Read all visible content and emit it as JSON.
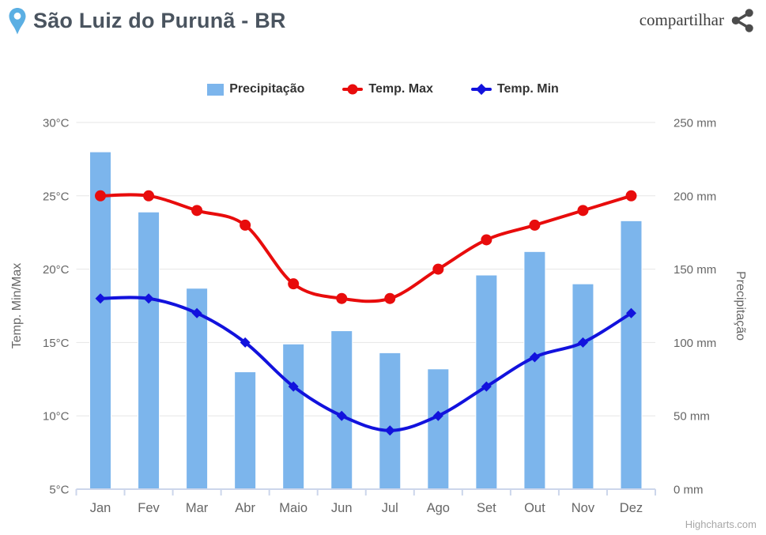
{
  "header": {
    "title": "São Luiz do Purunã - BR",
    "share_label": "compartilhar",
    "title_color": "#4a545f",
    "pin_color": "#5bafe3"
  },
  "legend": {
    "items": [
      {
        "label": "Precipitação",
        "type": "bar-swatch",
        "color": "#7cb5ec"
      },
      {
        "label": "Temp. Max",
        "type": "line-circle",
        "color": "#e80c0c"
      },
      {
        "label": "Temp. Min",
        "type": "line-diamond",
        "color": "#1212dd"
      }
    ]
  },
  "chart_data": {
    "type": "mixed",
    "title": "",
    "categories": [
      "Jan",
      "Fev",
      "Mar",
      "Abr",
      "Maio",
      "Jun",
      "Jul",
      "Ago",
      "Set",
      "Out",
      "Nov",
      "Dez"
    ],
    "series": [
      {
        "name": "Precipitação",
        "type": "bar",
        "axis": "right",
        "unit": "mm",
        "color": "#7cb5ec",
        "values": [
          230,
          189,
          137,
          80,
          99,
          108,
          93,
          82,
          146,
          162,
          140,
          183
        ]
      },
      {
        "name": "Temp. Max",
        "type": "spline",
        "axis": "left",
        "unit": "°C",
        "color": "#e80c0c",
        "marker": "circle",
        "values": [
          25,
          25,
          24,
          23,
          19,
          18,
          18,
          20,
          22,
          23,
          24,
          25
        ]
      },
      {
        "name": "Temp. Min",
        "type": "spline",
        "axis": "left",
        "unit": "°C",
        "color": "#1212dd",
        "marker": "diamond",
        "values": [
          18,
          18,
          17,
          15,
          12,
          10,
          9,
          10,
          12,
          14,
          15,
          17
        ]
      }
    ],
    "yaxis_left": {
      "title": "Temp. Min/Max",
      "min": 5,
      "max": 30,
      "tick_interval": 5,
      "labels": [
        "5°C",
        "10°C",
        "15°C",
        "20°C",
        "25°C",
        "30°C"
      ]
    },
    "yaxis_right": {
      "title": "Precipitação",
      "min": 0,
      "max": 250,
      "tick_interval": 50,
      "labels": [
        "0 mm",
        "50 mm",
        "100 mm",
        "150 mm",
        "200 mm",
        "250 mm"
      ]
    },
    "grid": true,
    "legend_position": "top",
    "colors": {
      "gridline": "#e6e6e6",
      "axis_line": "#ccd6eb",
      "axis_labels": "#666666",
      "legend_text": "#333333"
    }
  },
  "credit": "Highcharts.com"
}
